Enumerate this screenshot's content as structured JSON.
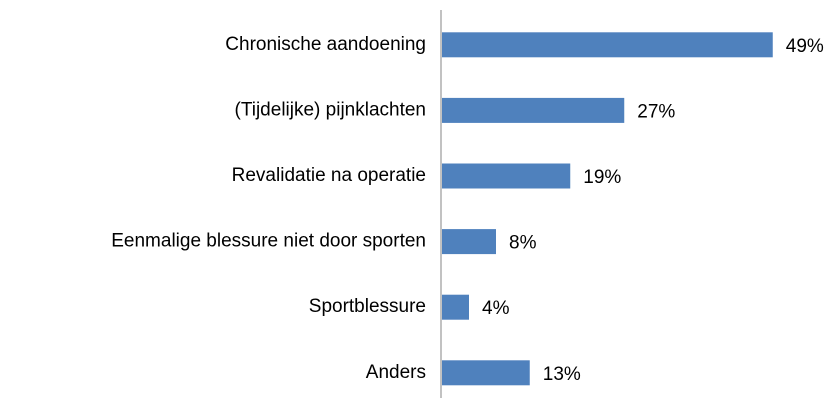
{
  "chart_data": {
    "type": "bar",
    "orientation": "horizontal",
    "categories": [
      "Chronische aandoening",
      "(Tijdelijke) pijnklachten",
      "Revalidatie na operatie",
      "Eenmalige blessure niet door sporten",
      "Sportblessure",
      "Anders"
    ],
    "values": [
      49,
      27,
      19,
      8,
      4,
      13
    ],
    "value_labels": [
      "49%",
      "27%",
      "19%",
      "8%",
      "4%",
      "13%"
    ],
    "color": "#4f81bd"
  }
}
